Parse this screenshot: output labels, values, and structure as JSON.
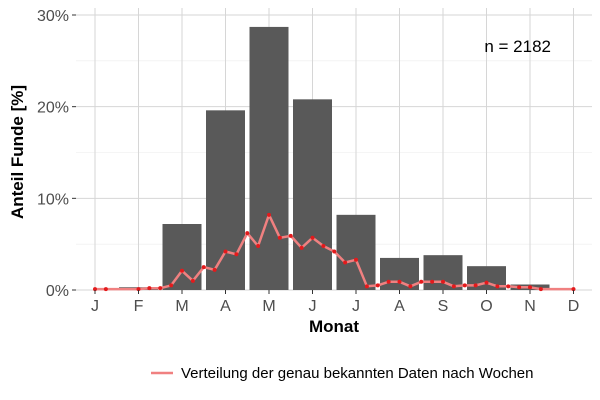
{
  "chart_data": {
    "type": "bar",
    "xlabel": "Monat",
    "ylabel": "Anteil Funde [%]",
    "ylim": [
      0,
      30
    ],
    "y_ticks": [
      {
        "value": 0,
        "label": "0%"
      },
      {
        "value": 10,
        "label": "10%"
      },
      {
        "value": 20,
        "label": "20%"
      },
      {
        "value": 30,
        "label": "30%"
      }
    ],
    "categories": [
      "J",
      "F",
      "M",
      "A",
      "M",
      "J",
      "J",
      "A",
      "S",
      "O",
      "N",
      "D"
    ],
    "values": [
      0.0,
      0.3,
      7.2,
      19.6,
      28.7,
      20.8,
      8.2,
      3.5,
      3.8,
      2.6,
      0.6,
      0.0
    ],
    "bar_color": "#595959",
    "annotation": "n = 2182",
    "grid": true,
    "legend_position": "bottom",
    "series": [
      {
        "name": "Verteilung der genau bekannten Daten nach Wochen",
        "type": "line",
        "color": "#f08080",
        "point_color": "#e31a1c",
        "x": [
          1,
          1.25,
          2,
          2.25,
          2.5,
          2.75,
          3,
          3.25,
          3.5,
          3.75,
          4,
          4.25,
          4.5,
          4.75,
          5,
          5.25,
          5.5,
          5.75,
          6,
          6.25,
          6.5,
          6.75,
          7,
          7.25,
          7.5,
          7.75,
          8,
          8.25,
          8.5,
          8.75,
          9,
          9.25,
          9.5,
          9.75,
          10,
          10.25,
          10.5,
          10.75,
          11,
          11.25,
          12
        ],
        "values": [
          0.1,
          0.1,
          0.1,
          0.2,
          0.2,
          0.5,
          2.1,
          1.0,
          2.5,
          2.2,
          4.2,
          3.9,
          6.2,
          4.8,
          8.2,
          5.7,
          5.9,
          4.6,
          5.7,
          4.8,
          4.2,
          3.0,
          3.3,
          0.4,
          0.5,
          0.9,
          0.9,
          0.4,
          0.9,
          0.9,
          0.9,
          0.4,
          0.5,
          0.5,
          0.8,
          0.4,
          0.4,
          0.3,
          0.3,
          0.1,
          0.1
        ]
      }
    ]
  }
}
